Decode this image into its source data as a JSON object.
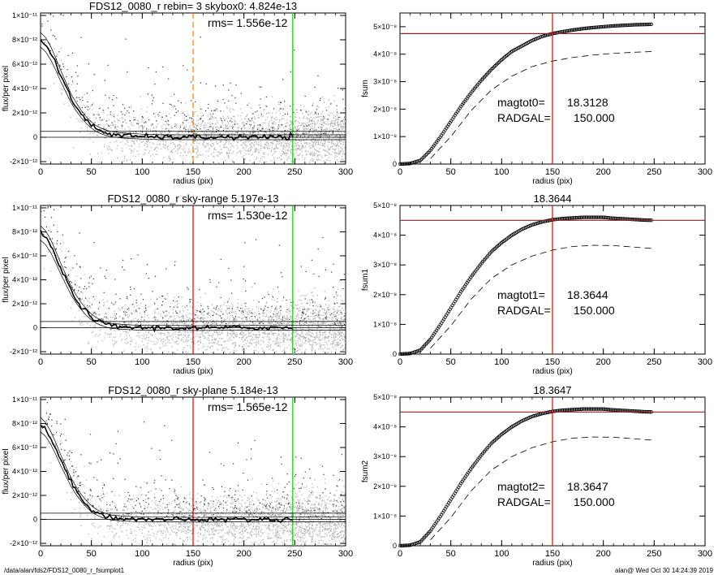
{
  "footer": {
    "path": "/data/alan/fds2/FDS12_0080_r_fsumplot1",
    "stamp": "alan@  Wed Oct 30 14:24:39 2019"
  },
  "colors": {
    "axis": "#000000",
    "scatter_gray": "#b4b4b4",
    "scatter_dark": "#303030",
    "profile": "#000000",
    "red_line": "#e00000",
    "green_line": "#00d000",
    "orange_dashed": "#f08000"
  },
  "chart_data": [
    {
      "id": "profile0",
      "type": "scatter",
      "title": "FDS12_0080_r rebin= 3    skybox0:  4.824e-13",
      "rms_text": "rms= 1.556e-12",
      "xlabel": "radius (pix)",
      "ylabel": "flux/per pixel",
      "xlim": [
        0,
        300
      ],
      "ylim": [
        -2.2e-12,
        1.02e-11
      ],
      "x_ticks": [
        0,
        50,
        100,
        150,
        200,
        250,
        300
      ],
      "x_tick_labels": [
        "0",
        "50",
        "100",
        "150",
        "200",
        "250",
        "300"
      ],
      "y_ticks": [
        -2e-12,
        0,
        2e-12,
        4e-12,
        6e-12,
        8e-12,
        1e-11
      ],
      "y_tick_labels": [
        "-2×10⁻¹²",
        "0",
        "2×10⁻¹²",
        "4×10⁻¹²",
        "6×10⁻¹²",
        "8×10⁻¹²",
        "1×10⁻¹¹"
      ],
      "sky_level": 4.824e-13,
      "vlines": [
        {
          "x": 150,
          "color": "#f08000",
          "style": "dashed"
        },
        {
          "x": 248,
          "color": "#00d000",
          "style": "solid"
        }
      ],
      "profile": {
        "x": [
          0,
          5,
          10,
          15,
          20,
          25,
          30,
          35,
          40,
          45,
          50,
          55,
          60,
          65,
          70,
          80,
          90,
          100,
          120,
          140,
          160,
          180,
          200,
          220,
          248,
          300
        ],
        "y": [
          8e-12,
          7.6e-12,
          6.9e-12,
          6e-12,
          5e-12,
          4.1e-12,
          3.2e-12,
          2.5e-12,
          1.9e-12,
          1.4e-12,
          1e-12,
          7e-13,
          5e-13,
          3.5e-13,
          2.5e-13,
          1.5e-13,
          1e-13,
          5e-14,
          0,
          0,
          0,
          0,
          0,
          0,
          0,
          0
        ]
      }
    },
    {
      "id": "fsum0",
      "type": "scatter",
      "title": "",
      "xlabel": "radius (pix)",
      "ylabel": "fsum",
      "xlim": [
        0,
        300
      ],
      "ylim": [
        0,
        5.5e-08
      ],
      "x_ticks": [
        0,
        50,
        100,
        150,
        200,
        250,
        300
      ],
      "x_tick_labels": [
        "0",
        "50",
        "100",
        "150",
        "200",
        "250",
        "300"
      ],
      "y_ticks": [
        0,
        1e-08,
        2e-08,
        3e-08,
        4e-08,
        5e-08
      ],
      "y_tick_labels": [
        "0",
        "1×10⁻⁸",
        "2×10⁻⁸",
        "3×10⁻⁸",
        "4×10⁻⁸",
        "5×10⁻⁸"
      ],
      "vline": 150,
      "hline": 4.75e-08,
      "annot_label1": "magtot0=",
      "annot_value1": "18.3128",
      "annot_label2": "RADGAL=",
      "annot_value2": "150.000",
      "curve_growth": {
        "x": [
          0,
          10,
          20,
          30,
          40,
          50,
          60,
          70,
          80,
          90,
          100,
          110,
          120,
          130,
          140,
          150,
          160,
          170,
          180,
          190,
          200,
          210,
          220,
          230,
          240,
          248
        ],
        "y": [
          0,
          2e-10,
          1.3e-09,
          5e-09,
          1e-08,
          1.55e-08,
          2.1e-08,
          2.6e-08,
          3.05e-08,
          3.45e-08,
          3.8e-08,
          4.1e-08,
          4.3e-08,
          4.5e-08,
          4.65e-08,
          4.75e-08,
          4.82e-08,
          4.88e-08,
          4.93e-08,
          4.97e-08,
          5e-08,
          5.03e-08,
          5.05e-08,
          5.07e-08,
          5.08e-08,
          5.09e-08
        ]
      },
      "curve_dashed": {
        "x": [
          30,
          50,
          70,
          90,
          110,
          130,
          150,
          170,
          190,
          210,
          230,
          250
        ],
        "y": [
          2e-09,
          1e-08,
          1.95e-08,
          2.7e-08,
          3.2e-08,
          3.55e-08,
          3.75e-08,
          3.88e-08,
          3.97e-08,
          4.03e-08,
          4.07e-08,
          4.1e-08
        ]
      }
    },
    {
      "id": "profile1",
      "type": "scatter",
      "title": "FDS12_0080_r sky-range  5.197e-13",
      "rms_text": "rms= 1.530e-12",
      "xlabel": "radius (pix)",
      "ylabel": "flux/per pixel",
      "xlim": [
        0,
        300
      ],
      "ylim": [
        -2.2e-12,
        1.02e-11
      ],
      "x_ticks": [
        0,
        50,
        100,
        150,
        200,
        250,
        300
      ],
      "x_tick_labels": [
        "0",
        "50",
        "100",
        "150",
        "200",
        "250",
        "300"
      ],
      "y_ticks": [
        -2e-12,
        0,
        2e-12,
        4e-12,
        6e-12,
        8e-12,
        1e-11
      ],
      "y_tick_labels": [
        "-2×10⁻¹²",
        "0",
        "2×10⁻¹²",
        "4×10⁻¹²",
        "6×10⁻¹²",
        "8×10⁻¹²",
        "1×10⁻¹¹"
      ],
      "sky_level": 5.197e-13,
      "vlines": [
        {
          "x": 150,
          "color": "#e00000",
          "style": "solid"
        },
        {
          "x": 248,
          "color": "#00d000",
          "style": "solid"
        }
      ],
      "profile": {
        "x": [
          0,
          5,
          10,
          15,
          20,
          25,
          30,
          35,
          40,
          45,
          50,
          55,
          60,
          65,
          70,
          80,
          90,
          100,
          120,
          140,
          160,
          180,
          200,
          220,
          248,
          300
        ],
        "y": [
          7.9e-12,
          7.5e-12,
          6.8e-12,
          5.9e-12,
          4.9e-12,
          4e-12,
          3.1e-12,
          2.4e-12,
          1.8e-12,
          1.3e-12,
          9e-13,
          6e-13,
          4e-13,
          2.5e-13,
          1.5e-13,
          8e-14,
          3e-14,
          0,
          0,
          -2e-14,
          -3e-14,
          0,
          0,
          0,
          0,
          0
        ]
      }
    },
    {
      "id": "fsum1",
      "type": "scatter",
      "title": "18.3644",
      "xlabel": "radius (pix)",
      "ylabel": "fsum1",
      "xlim": [
        0,
        300
      ],
      "ylim": [
        0,
        5e-08
      ],
      "x_ticks": [
        0,
        50,
        100,
        150,
        200,
        250,
        300
      ],
      "x_tick_labels": [
        "0",
        "50",
        "100",
        "150",
        "200",
        "250",
        "300"
      ],
      "y_ticks": [
        0,
        1e-08,
        2e-08,
        3e-08,
        4e-08,
        5e-08
      ],
      "y_tick_labels": [
        "0",
        "1×10⁻⁸",
        "2×10⁻⁸",
        "3×10⁻⁸",
        "4×10⁻⁸",
        "5×10⁻⁸"
      ],
      "vline": 150,
      "hline": 4.5e-08,
      "annot_label1": "magtot1=",
      "annot_value1": "18.3644",
      "annot_label2": "RADGAL=",
      "annot_value2": "150.000",
      "curve_growth": {
        "x": [
          0,
          10,
          20,
          30,
          40,
          50,
          60,
          70,
          80,
          90,
          100,
          110,
          120,
          130,
          140,
          150,
          160,
          170,
          180,
          190,
          200,
          210,
          220,
          230,
          240,
          248
        ],
        "y": [
          0,
          2e-10,
          1.3e-09,
          5e-09,
          1e-08,
          1.55e-08,
          2.1e-08,
          2.6e-08,
          3.05e-08,
          3.45e-08,
          3.75e-08,
          4e-08,
          4.2e-08,
          4.35e-08,
          4.45e-08,
          4.52e-08,
          4.56e-08,
          4.58e-08,
          4.6e-08,
          4.6e-08,
          4.6e-08,
          4.57e-08,
          4.55e-08,
          4.53e-08,
          4.51e-08,
          4.5e-08
        ]
      },
      "curve_dashed": {
        "x": [
          30,
          50,
          70,
          90,
          110,
          130,
          150,
          170,
          190,
          210,
          230,
          250
        ],
        "y": [
          2e-09,
          9.5e-09,
          1.85e-08,
          2.55e-08,
          3e-08,
          3.3e-08,
          3.5e-08,
          3.62e-08,
          3.66e-08,
          3.65e-08,
          3.6e-08,
          3.55e-08
        ]
      }
    },
    {
      "id": "profile2",
      "type": "scatter",
      "title": "FDS12_0080_r sky-plane  5.184e-13",
      "rms_text": "rms= 1.565e-12",
      "xlabel": "radius (pix)",
      "ylabel": "flux/per pixel",
      "xlim": [
        0,
        300
      ],
      "ylim": [
        -2.2e-12,
        1.02e-11
      ],
      "x_ticks": [
        0,
        50,
        100,
        150,
        200,
        250,
        300
      ],
      "x_tick_labels": [
        "0",
        "50",
        "100",
        "150",
        "200",
        "250",
        "300"
      ],
      "y_ticks": [
        -2e-12,
        0,
        2e-12,
        4e-12,
        6e-12,
        8e-12,
        1e-11
      ],
      "y_tick_labels": [
        "-2×10⁻¹²",
        "0",
        "2×10⁻¹²",
        "4×10⁻¹²",
        "6×10⁻¹²",
        "8×10⁻¹²",
        "1×10⁻¹¹"
      ],
      "sky_level": 5.184e-13,
      "vlines": [
        {
          "x": 150,
          "color": "#e00000",
          "style": "solid"
        },
        {
          "x": 248,
          "color": "#00d000",
          "style": "solid"
        }
      ],
      "profile": {
        "x": [
          0,
          5,
          10,
          15,
          20,
          25,
          30,
          35,
          40,
          45,
          50,
          55,
          60,
          65,
          70,
          80,
          90,
          100,
          120,
          140,
          160,
          180,
          200,
          220,
          248,
          300
        ],
        "y": [
          7.9e-12,
          7.5e-12,
          6.8e-12,
          5.9e-12,
          4.9e-12,
          4e-12,
          3.1e-12,
          2.4e-12,
          1.8e-12,
          1.3e-12,
          9e-13,
          6e-13,
          4e-13,
          2.5e-13,
          1.5e-13,
          8e-14,
          3e-14,
          0,
          0,
          -2e-14,
          -3e-14,
          0,
          0,
          0,
          0,
          0
        ]
      }
    },
    {
      "id": "fsum2",
      "type": "scatter",
      "title": "18.3647",
      "xlabel": "radius (pix)",
      "ylabel": "fsum2",
      "xlim": [
        0,
        300
      ],
      "ylim": [
        0,
        5e-08
      ],
      "x_ticks": [
        0,
        50,
        100,
        150,
        200,
        250,
        300
      ],
      "x_tick_labels": [
        "0",
        "50",
        "100",
        "150",
        "200",
        "250",
        "300"
      ],
      "y_ticks": [
        0,
        1e-08,
        2e-08,
        3e-08,
        4e-08,
        5e-08
      ],
      "y_tick_labels": [
        "0",
        "1×10⁻⁸",
        "2×10⁻⁸",
        "3×10⁻⁸",
        "4×10⁻⁸",
        "5×10⁻⁸"
      ],
      "vline": 150,
      "hline": 4.5e-08,
      "annot_label1": "magtot2=",
      "annot_value1": "18.3647",
      "annot_label2": "RADGAL=",
      "annot_value2": "150.000",
      "curve_growth": {
        "x": [
          0,
          10,
          20,
          30,
          40,
          50,
          60,
          70,
          80,
          90,
          100,
          110,
          120,
          130,
          140,
          150,
          160,
          170,
          180,
          190,
          200,
          210,
          220,
          230,
          240,
          248
        ],
        "y": [
          0,
          2e-10,
          1.3e-09,
          5e-09,
          1e-08,
          1.55e-08,
          2.1e-08,
          2.6e-08,
          3.05e-08,
          3.45e-08,
          3.75e-08,
          4e-08,
          4.2e-08,
          4.35e-08,
          4.45e-08,
          4.52e-08,
          4.56e-08,
          4.58e-08,
          4.6e-08,
          4.6e-08,
          4.6e-08,
          4.57e-08,
          4.55e-08,
          4.53e-08,
          4.51e-08,
          4.5e-08
        ]
      },
      "curve_dashed": {
        "x": [
          30,
          50,
          70,
          90,
          110,
          130,
          150,
          170,
          190,
          210,
          230,
          250
        ],
        "y": [
          2e-09,
          9.5e-09,
          1.85e-08,
          2.55e-08,
          3e-08,
          3.3e-08,
          3.5e-08,
          3.62e-08,
          3.66e-08,
          3.65e-08,
          3.6e-08,
          3.55e-08
        ]
      }
    }
  ]
}
